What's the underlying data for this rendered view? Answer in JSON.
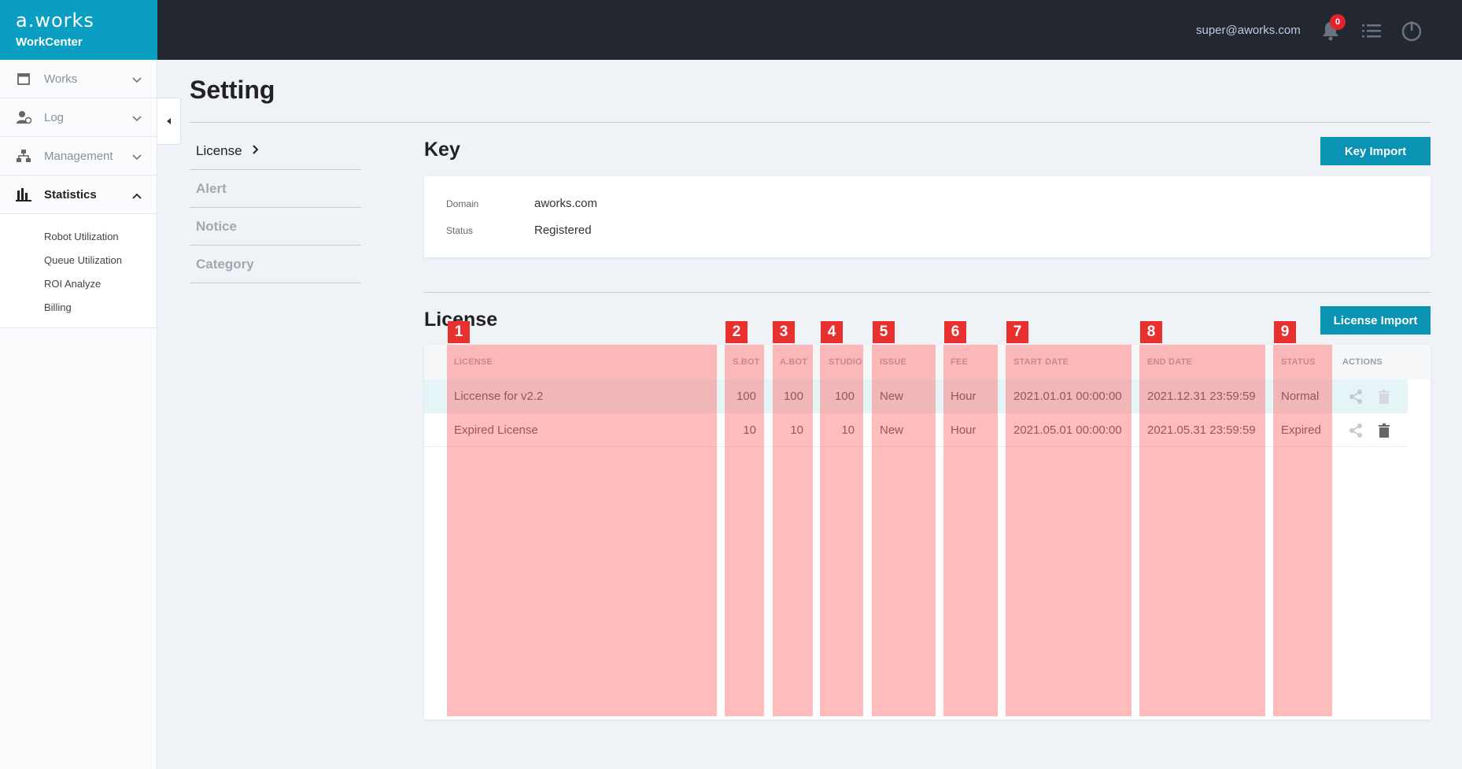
{
  "brand": {
    "logo": "a.works",
    "name": "WorkCenter"
  },
  "topbar": {
    "user_email": "super@aworks.com",
    "notification_count": "0",
    "icons": [
      "bell-icon",
      "list-icon",
      "power-icon"
    ]
  },
  "sidebar": {
    "items": [
      {
        "label": "Works",
        "icon": "calendar-icon"
      },
      {
        "label": "Log",
        "icon": "user-log-icon"
      },
      {
        "label": "Management",
        "icon": "hierarchy-icon"
      },
      {
        "label": "Statistics",
        "icon": "bar-chart-icon"
      }
    ],
    "sub_items": [
      "Robot Utilization",
      "Queue Utilization",
      "ROI Analyze",
      "Billing"
    ]
  },
  "page": {
    "title": "Setting"
  },
  "subnav": [
    "License",
    "Alert",
    "Notice",
    "Category"
  ],
  "key": {
    "title": "Key",
    "import_button": "Key Import",
    "domain_label": "Domain",
    "domain_value": "aworks.com",
    "status_label": "Status",
    "status_value": "Registered"
  },
  "license": {
    "title": "License",
    "import_button": "License Import",
    "columns": [
      "LICENSE",
      "S.BOT",
      "A.BOT",
      "STUDIO",
      "ISSUE",
      "FEE",
      "START DATE",
      "END DATE",
      "STATUS",
      "ACTIONS"
    ],
    "rows": [
      {
        "license": "Liccense for v2.2",
        "sbot": "100",
        "abot": "100",
        "studio": "100",
        "issue": "New",
        "fee": "Hour",
        "start": "2021.01.01 00:00:00",
        "end": "2021.12.31 23:59:59",
        "status": "Normal"
      },
      {
        "license": "Expired License",
        "sbot": "10",
        "abot": "10",
        "studio": "10",
        "issue": "New",
        "fee": "Hour",
        "start": "2021.05.01 00:00:00",
        "end": "2021.05.31 23:59:59",
        "status": "Expired"
      }
    ]
  },
  "markers": [
    "1",
    "2",
    "3",
    "4",
    "5",
    "6",
    "7",
    "8",
    "9"
  ],
  "colors": {
    "brand": "#0a9ec3",
    "topbar": "#232830",
    "button": "#0a93b3",
    "highlight": "#ff6e6e",
    "marker": "#e8312f"
  }
}
